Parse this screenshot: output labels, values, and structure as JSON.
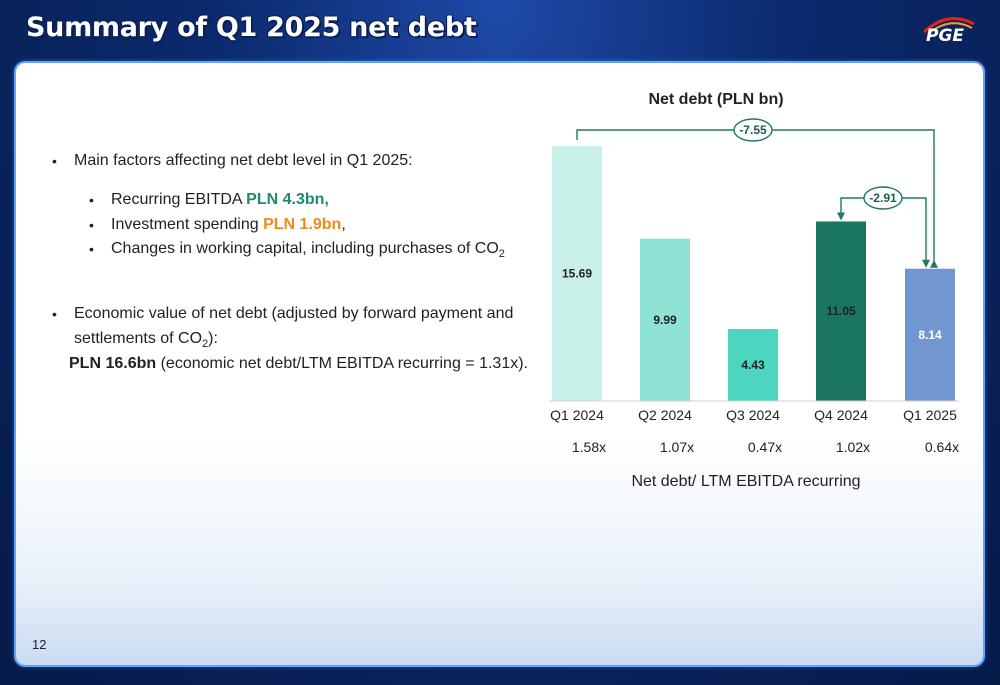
{
  "slide": {
    "title": "Summary of Q1 2025 net debt",
    "logo_text": "PGE",
    "page_number": "12"
  },
  "text": {
    "b1": "Main factors affecting net debt level in Q1 2025:",
    "b2_prefix": "Recurring EBITDA ",
    "b2_value": "PLN 4.3bn,",
    "b3_prefix": "Investment spending ",
    "b3_value": "PLN 1.9bn",
    "b3_suffix": ",",
    "b4_prefix": "Changes in working capital, including purchases of CO",
    "b4_sub": "2",
    "b5_line1": "Economic value of net debt (adjusted by forward payment and",
    "b5_line2_prefix": "settlements of CO",
    "b5_line2_sub": "2",
    "b5_line2_suffix": "):",
    "b5_line3_bold": "PLN 16.6bn",
    "b5_line3_rest": " (economic net debt/LTM EBITDA recurring = 1.31x)."
  },
  "colors": {
    "accent_green": "#1f8a6a",
    "accent_orange": "#f08a1c",
    "bar_colors": [
      "#c8efe8",
      "#8fe3d4",
      "#4dd6bf",
      "#1b7563",
      "#7196d0"
    ]
  },
  "chart_data": {
    "type": "bar",
    "title": "Net debt (PLN bn)",
    "categories": [
      "Q1 2024",
      "Q2 2024",
      "Q3 2024",
      "Q4 2024",
      "Q1 2025"
    ],
    "values": [
      15.69,
      9.99,
      4.43,
      11.05,
      8.14
    ],
    "value_labels": [
      "15.69",
      "9.99",
      "4.43",
      "11.05",
      "8.14"
    ],
    "ratios": [
      "1.58x",
      "1.07x",
      "0.47x",
      "1.02x",
      "0.64x"
    ],
    "xlabel": "Net debt/ LTM EBITDA recurring",
    "ylabel": "",
    "ylim": [
      0,
      16
    ],
    "annotations": [
      {
        "label": "-7.55",
        "from": "Q1 2024",
        "to": "Q1 2025"
      },
      {
        "label": "-2.91",
        "from": "Q4 2024",
        "to": "Q1 2025"
      }
    ]
  }
}
